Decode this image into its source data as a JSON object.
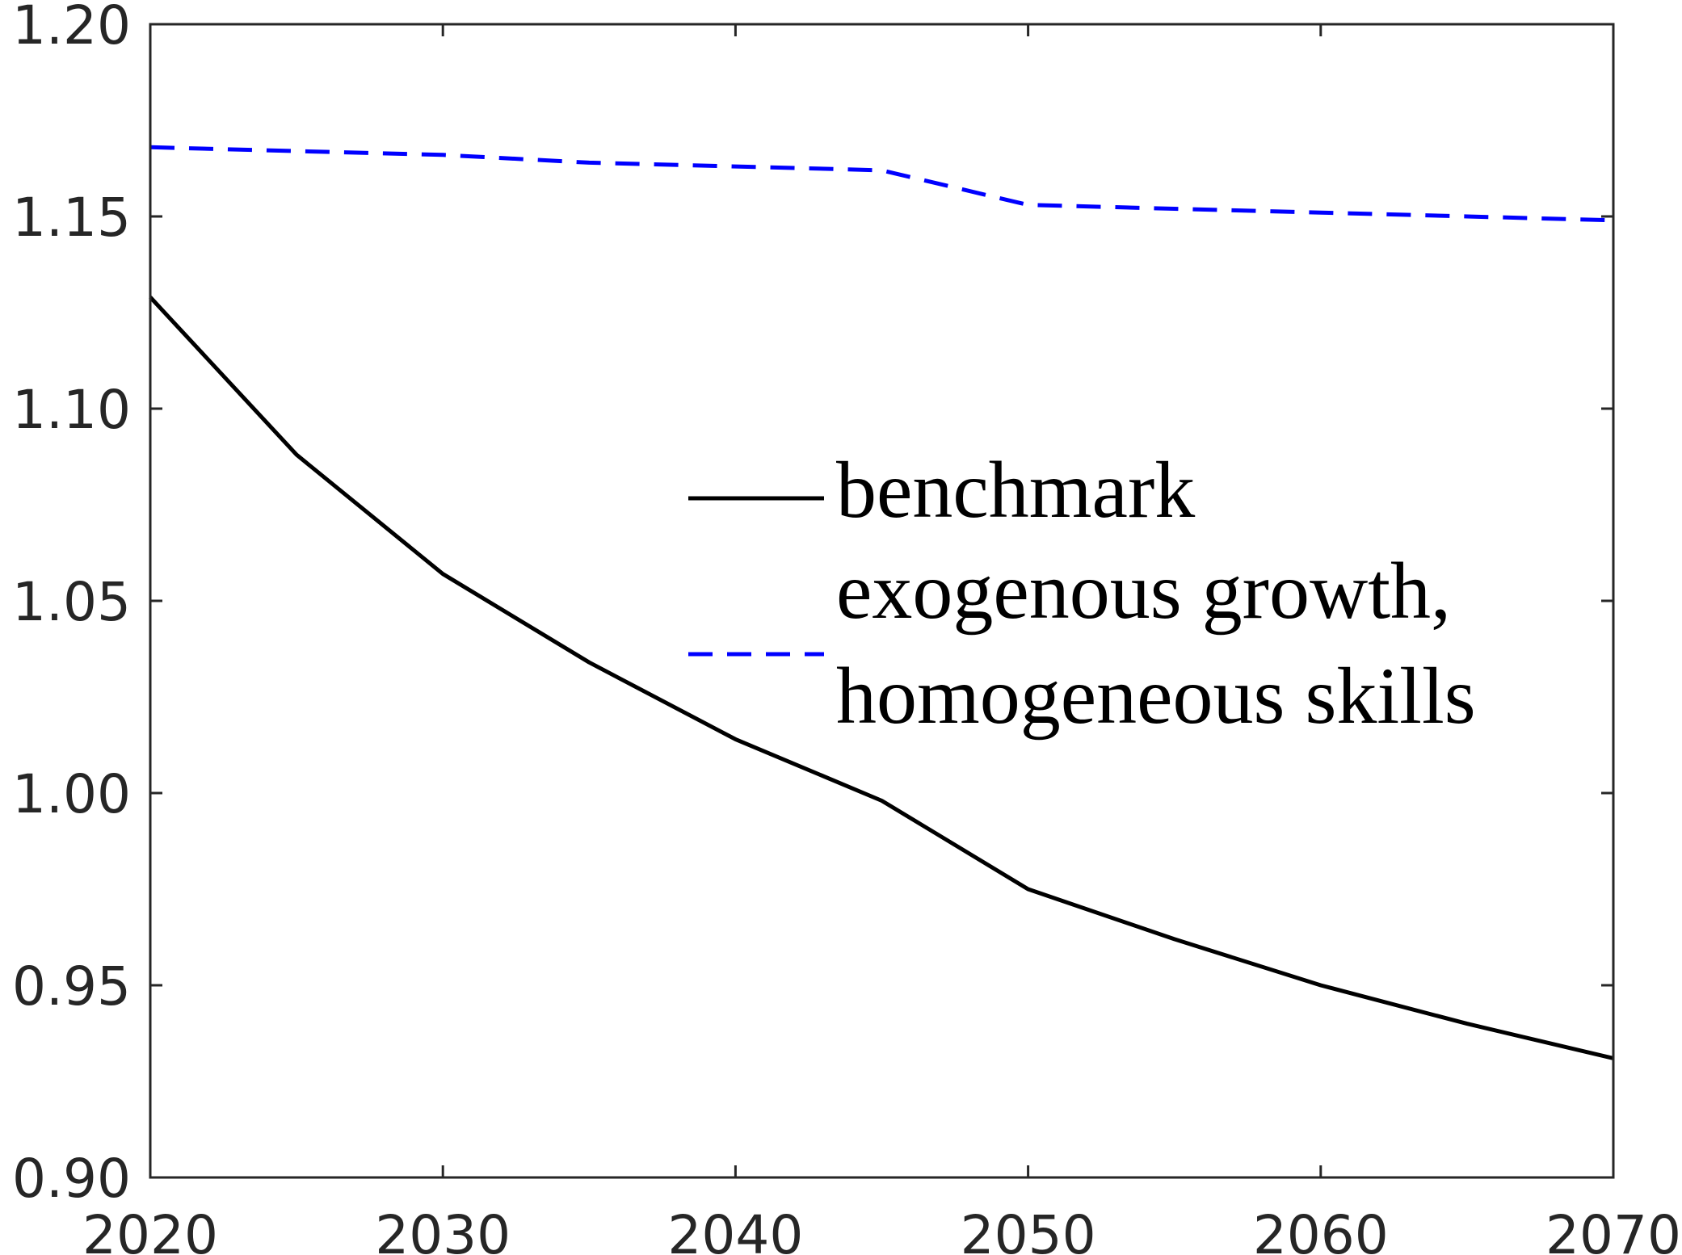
{
  "chart_data": {
    "type": "line",
    "title": "",
    "xlabel": "",
    "ylabel": "",
    "xlim": [
      2020,
      2070
    ],
    "ylim": [
      0.9,
      1.2
    ],
    "x": [
      2020,
      2025,
      2030,
      2035,
      2040,
      2045,
      2050,
      2055,
      2060,
      2065,
      2070
    ],
    "xticks": [
      "2020",
      "2030",
      "2040",
      "2050",
      "2060",
      "2070"
    ],
    "yticks": [
      "0.90",
      "0.95",
      "1.00",
      "1.05",
      "1.10",
      "1.15",
      "1.20"
    ],
    "grid": false,
    "legend_position": "center-right",
    "series": [
      {
        "name": "benchmark",
        "color": "#000000",
        "style": "solid",
        "values": [
          1.129,
          1.088,
          1.057,
          1.034,
          1.014,
          0.998,
          0.975,
          0.962,
          0.95,
          0.94,
          0.931
        ]
      },
      {
        "name": "exogenous growth, homogeneous skills",
        "legend_lines": [
          "exogenous growth,",
          "homogeneous skills"
        ],
        "color": "#0000ff",
        "style": "dashed",
        "values": [
          1.168,
          1.167,
          1.166,
          1.164,
          1.163,
          1.162,
          1.153,
          1.152,
          1.151,
          1.15,
          1.149
        ]
      }
    ]
  }
}
